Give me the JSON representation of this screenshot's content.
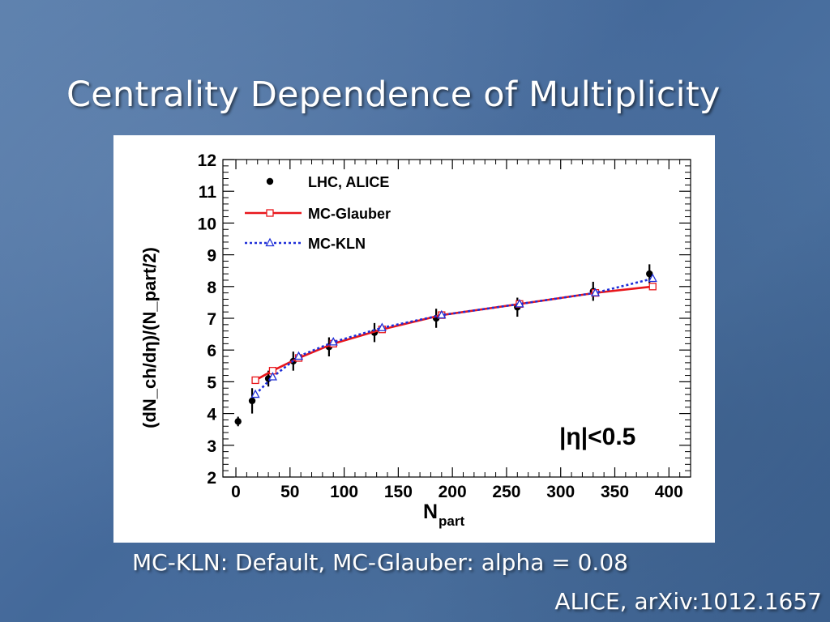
{
  "slide": {
    "title": "Centrality Dependence of Multiplicity",
    "caption": "MC-KLN: Default, MC-Glauber: alpha = 0.08",
    "reference": "ALICE, arXiv:1012.1657"
  },
  "colors": {
    "background": "#4a6f9e",
    "glauber": "#e8161b",
    "kln": "#1f2fd8",
    "alice": "#000000"
  },
  "chart_data": {
    "type": "line",
    "xlabel": "N",
    "xlabel_sub": "part",
    "ylabel": "(dN_ch/dη)/(N_part/2)",
    "xlim": [
      -12,
      420
    ],
    "ylim": [
      2,
      12
    ],
    "x_ticks": [
      0,
      50,
      100,
      150,
      200,
      250,
      300,
      350,
      400
    ],
    "y_ticks": [
      2,
      3,
      4,
      5,
      6,
      7,
      8,
      9,
      10,
      11,
      12
    ],
    "grid": false,
    "legend_position": "top-left",
    "annotation": "|η|<0.5",
    "series": [
      {
        "name": "LHC, ALICE",
        "style": "points",
        "color": "#000000",
        "x": [
          2,
          15,
          30,
          53,
          86,
          128,
          185,
          260,
          330,
          382
        ],
        "y": [
          3.75,
          4.4,
          5.1,
          5.65,
          6.1,
          6.55,
          7.0,
          7.35,
          7.85,
          8.4
        ],
        "err": [
          0.15,
          0.4,
          0.25,
          0.3,
          0.3,
          0.3,
          0.3,
          0.3,
          0.3,
          0.3
        ]
      },
      {
        "name": "MC-Glauber",
        "style": "solid",
        "color": "#e8161b",
        "x": [
          18,
          34,
          58,
          90,
          135,
          190,
          262,
          332,
          385
        ],
        "y": [
          5.05,
          5.35,
          5.75,
          6.2,
          6.65,
          7.1,
          7.45,
          7.8,
          8.0
        ]
      },
      {
        "name": "MC-KLN",
        "style": "dotted",
        "color": "#1f2fd8",
        "x": [
          18,
          34,
          58,
          90,
          135,
          190,
          262,
          332,
          385
        ],
        "y": [
          4.6,
          5.15,
          5.8,
          6.25,
          6.7,
          7.1,
          7.45,
          7.8,
          8.25
        ]
      }
    ]
  }
}
